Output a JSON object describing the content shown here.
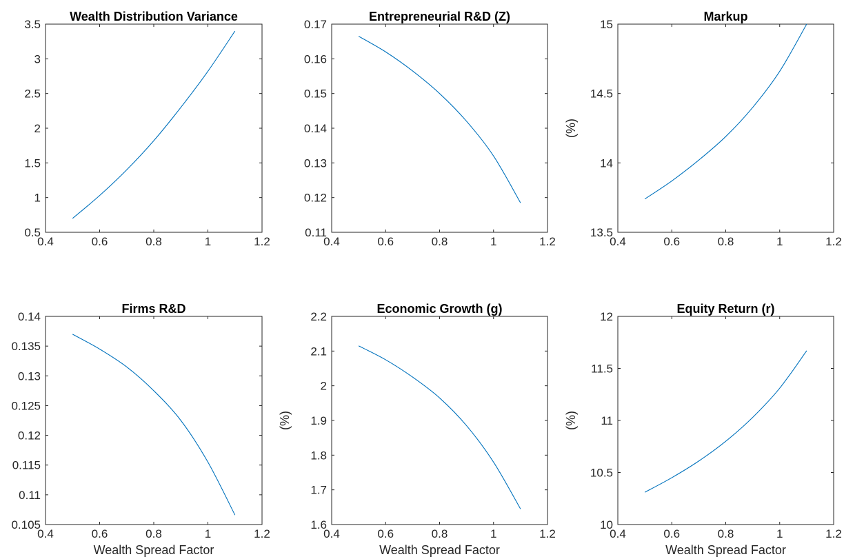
{
  "chart_data": [
    {
      "type": "line",
      "title": "Wealth Distribution Variance",
      "xlabel": "",
      "ylabel": "",
      "xlim": [
        0.4,
        1.2
      ],
      "ylim": [
        0.5,
        3.5
      ],
      "xticks": [
        0.4,
        0.6,
        0.8,
        1,
        1.2
      ],
      "yticks": [
        0.5,
        1,
        1.5,
        2,
        2.5,
        3,
        3.5
      ],
      "xtick_labels": [
        "0.4",
        "0.6",
        "0.8",
        "1",
        "1.2"
      ],
      "ytick_labels": [
        "0.5",
        "1",
        "1.5",
        "2",
        "2.5",
        "3",
        "3.5"
      ],
      "x": [
        0.5,
        0.6,
        0.7,
        0.8,
        0.9,
        1.0,
        1.1
      ],
      "y": [
        0.7,
        1.03,
        1.4,
        1.82,
        2.3,
        2.82,
        3.4
      ]
    },
    {
      "type": "line",
      "title": "Entrepreneurial R&D (Z)",
      "xlabel": "",
      "ylabel": "",
      "xlim": [
        0.4,
        1.2
      ],
      "ylim": [
        0.11,
        0.17
      ],
      "xticks": [
        0.4,
        0.6,
        0.8,
        1,
        1.2
      ],
      "yticks": [
        0.11,
        0.12,
        0.13,
        0.14,
        0.15,
        0.16,
        0.17
      ],
      "xtick_labels": [
        "0.4",
        "0.6",
        "0.8",
        "1",
        "1.2"
      ],
      "ytick_labels": [
        "0.11",
        "0.12",
        "0.13",
        "0.14",
        "0.15",
        "0.16",
        "0.17"
      ],
      "x": [
        0.5,
        0.6,
        0.7,
        0.8,
        0.9,
        1.0,
        1.1
      ],
      "y": [
        0.1665,
        0.162,
        0.1565,
        0.15,
        0.142,
        0.132,
        0.1185
      ]
    },
    {
      "type": "line",
      "title": "Markup",
      "xlabel": "",
      "ylabel": "(%)",
      "xlim": [
        0.4,
        1.2
      ],
      "ylim": [
        13.5,
        15
      ],
      "xticks": [
        0.4,
        0.6,
        0.8,
        1,
        1.2
      ],
      "yticks": [
        13.5,
        14,
        14.5,
        15
      ],
      "xtick_labels": [
        "0.4",
        "0.6",
        "0.8",
        "1",
        "1.2"
      ],
      "ytick_labels": [
        "13.5",
        "14",
        "14.5",
        "15"
      ],
      "x": [
        0.5,
        0.6,
        0.7,
        0.8,
        0.9,
        1.0,
        1.1
      ],
      "y": [
        13.74,
        13.87,
        14.02,
        14.19,
        14.4,
        14.66,
        15.0
      ]
    },
    {
      "type": "line",
      "title": "Firms R&D",
      "xlabel": "Wealth Spread Factor",
      "ylabel": "",
      "xlim": [
        0.4,
        1.2
      ],
      "ylim": [
        0.105,
        0.14
      ],
      "xticks": [
        0.4,
        0.6,
        0.8,
        1,
        1.2
      ],
      "yticks": [
        0.105,
        0.11,
        0.115,
        0.12,
        0.125,
        0.13,
        0.135,
        0.14
      ],
      "xtick_labels": [
        "0.4",
        "0.6",
        "0.8",
        "1",
        "1.2"
      ],
      "ytick_labels": [
        "0.105",
        "0.11",
        "0.115",
        "0.12",
        "0.125",
        "0.13",
        "0.135",
        "0.14"
      ],
      "x": [
        0.5,
        0.6,
        0.7,
        0.8,
        0.9,
        1.0,
        1.1
      ],
      "y": [
        0.137,
        0.1345,
        0.1315,
        0.1275,
        0.1225,
        0.1155,
        0.1066
      ]
    },
    {
      "type": "line",
      "title": "Economic Growth (g)",
      "xlabel": "Wealth Spread Factor",
      "ylabel": "(%)",
      "xlim": [
        0.4,
        1.2
      ],
      "ylim": [
        1.6,
        2.2
      ],
      "xticks": [
        0.4,
        0.6,
        0.8,
        1,
        1.2
      ],
      "yticks": [
        1.6,
        1.7,
        1.8,
        1.9,
        2,
        2.1,
        2.2
      ],
      "xtick_labels": [
        "0.4",
        "0.6",
        "0.8",
        "1",
        "1.2"
      ],
      "ytick_labels": [
        "1.6",
        "1.7",
        "1.8",
        "1.9",
        "2",
        "2.1",
        "2.2"
      ],
      "x": [
        0.5,
        0.6,
        0.7,
        0.8,
        0.9,
        1.0,
        1.1
      ],
      "y": [
        2.115,
        2.075,
        2.025,
        1.965,
        1.885,
        1.78,
        1.645
      ]
    },
    {
      "type": "line",
      "title": "Equity Return (r)",
      "xlabel": "Wealth Spread Factor",
      "ylabel": "(%)",
      "xlim": [
        0.4,
        1.2
      ],
      "ylim": [
        10,
        12
      ],
      "xticks": [
        0.4,
        0.6,
        0.8,
        1,
        1.2
      ],
      "yticks": [
        10,
        10.5,
        11,
        11.5,
        12
      ],
      "xtick_labels": [
        "0.4",
        "0.6",
        "0.8",
        "1",
        "1.2"
      ],
      "ytick_labels": [
        "10",
        "10.5",
        "11",
        "11.5",
        "12"
      ],
      "x": [
        0.5,
        0.6,
        0.7,
        0.8,
        0.9,
        1.0,
        1.1
      ],
      "y": [
        10.31,
        10.45,
        10.61,
        10.8,
        11.03,
        11.31,
        11.67
      ]
    }
  ],
  "colors": {
    "series": "#0072bd",
    "axes": "#262626",
    "background": "#ffffff"
  },
  "grid": false
}
